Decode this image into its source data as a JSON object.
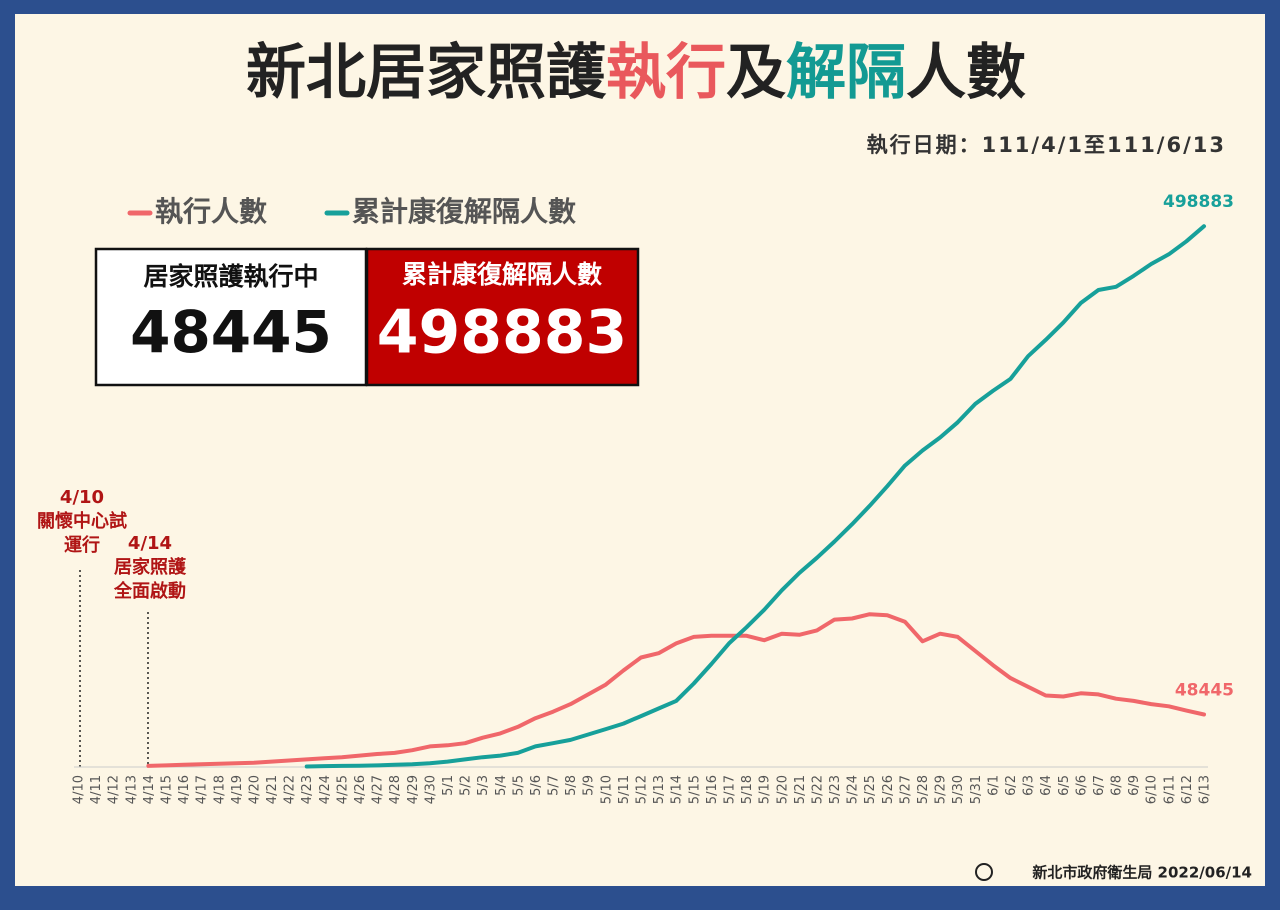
{
  "chart_data": {
    "type": "line",
    "title_parts": [
      {
        "text": "新北居家照護",
        "color": "#222222"
      },
      {
        "text": "執行",
        "color": "#e9585c"
      },
      {
        "text": "及",
        "color": "#222222"
      },
      {
        "text": "解隔",
        "color": "#139a93"
      },
      {
        "text": "人數",
        "color": "#222222"
      }
    ],
    "subtitle": "執行日期：111/4/1至111/6/13",
    "kpis": [
      {
        "label": "居家照護執行中",
        "value": 48445
      },
      {
        "label": "累計康復解隔人數",
        "value": 498883
      }
    ],
    "annotations": [
      {
        "lines": [
          "4/10",
          "關懷中心試",
          "運行"
        ]
      },
      {
        "lines": [
          "4/14",
          "居家照護",
          "全面啟動"
        ]
      }
    ],
    "source": "新北市政府衛生局 2022/06/14",
    "categories": [
      "4/10",
      "4/11",
      "4/12",
      "4/13",
      "4/14",
      "4/15",
      "4/16",
      "4/17",
      "4/18",
      "4/19",
      "4/20",
      "4/21",
      "4/22",
      "4/23",
      "4/24",
      "4/25",
      "4/26",
      "4/27",
      "4/28",
      "4/29",
      "4/30",
      "5/1",
      "5/2",
      "5/3",
      "5/4",
      "5/5",
      "5/6",
      "5/7",
      "5/8",
      "5/9",
      "5/10",
      "5/11",
      "5/12",
      "5/13",
      "5/14",
      "5/15",
      "5/16",
      "5/17",
      "5/18",
      "5/19",
      "5/20",
      "5/21",
      "5/22",
      "5/23",
      "5/24",
      "5/25",
      "5/26",
      "5/27",
      "5/28",
      "5/29",
      "5/30",
      "5/31",
      "6/1",
      "6/2",
      "6/3",
      "6/4",
      "6/5",
      "6/6",
      "6/7",
      "6/8",
      "6/9",
      "6/10",
      "6/11",
      "6/12",
      "6/13"
    ],
    "series": [
      {
        "name": "執行人數",
        "color": "#f0676a",
        "values": [
          null,
          null,
          null,
          null,
          1000,
          1500,
          2000,
          2500,
          3000,
          3500,
          4000,
          5000,
          6000,
          7000,
          8000,
          9000,
          10500,
          12000,
          13000,
          15500,
          19000,
          20000,
          22000,
          27000,
          31000,
          37000,
          45000,
          51000,
          58000,
          67000,
          76000,
          89000,
          101000,
          105000,
          114000,
          120000,
          121000,
          121000,
          121000,
          117000,
          123000,
          122000,
          126000,
          136000,
          137000,
          141000,
          140000,
          134000,
          116000,
          123000,
          120000,
          107000,
          94000,
          82000,
          74000,
          66000,
          65000,
          68000,
          67000,
          63000,
          61000,
          58000,
          56000,
          52000,
          48445
        ]
      },
      {
        "name": "累計康復解隔人數",
        "color": "#17a09a",
        "values": [
          null,
          null,
          null,
          null,
          null,
          null,
          null,
          null,
          null,
          null,
          null,
          null,
          null,
          500,
          800,
          1000,
          1200,
          1500,
          2000,
          2500,
          3500,
          5000,
          7000,
          9000,
          10500,
          13000,
          19000,
          22000,
          25000,
          30000,
          35000,
          40000,
          47000,
          54000,
          61000,
          77000,
          95000,
          114000,
          129000,
          145000,
          163000,
          179000,
          193000,
          208000,
          224000,
          241000,
          259000,
          278000,
          292000,
          304000,
          318000,
          335000,
          347000,
          358000,
          379000,
          394000,
          410000,
          428000,
          440000,
          443000,
          453000,
          464000,
          473000,
          485000,
          498883
        ]
      }
    ],
    "ylim": [
      0,
      500000
    ]
  }
}
